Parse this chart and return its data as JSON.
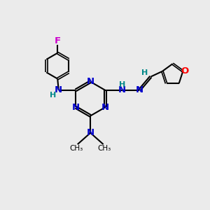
{
  "bg_color": "#ebebeb",
  "bond_color": "#000000",
  "N_color": "#0000cc",
  "O_color": "#ff0000",
  "F_color": "#cc00cc",
  "H_color": "#008888",
  "line_width": 1.5,
  "font_size": 9.5,
  "small_font_size": 8.0,
  "figsize": [
    3.0,
    3.0
  ],
  "dpi": 100,
  "xlim": [
    0,
    10
  ],
  "ylim": [
    0,
    10
  ]
}
